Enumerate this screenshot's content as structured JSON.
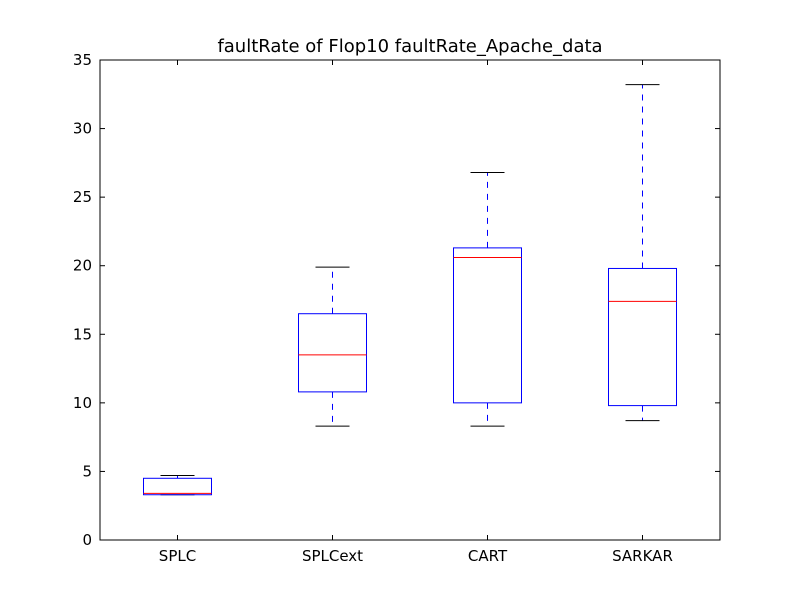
{
  "chart_data": {
    "type": "box",
    "title": "faultRate of Flop10 faultRate_Apache_data",
    "xlabel": "",
    "ylabel": "",
    "ylim": [
      0,
      35
    ],
    "yticks": [
      0,
      5,
      10,
      15,
      20,
      25,
      30,
      35
    ],
    "grid": false,
    "colors": {
      "box": "#0000ff",
      "median": "#ff0000",
      "cap": "#000000",
      "axes": "#000000"
    },
    "categories": [
      "SPLC",
      "SPLCext",
      "CART",
      "SARKAR"
    ],
    "boxes": [
      {
        "label": "SPLC",
        "whisker_low": 3.3,
        "q1": 3.3,
        "median": 3.4,
        "q3": 4.5,
        "whisker_high": 4.7
      },
      {
        "label": "SPLCext",
        "whisker_low": 8.3,
        "q1": 10.8,
        "median": 13.5,
        "q3": 16.5,
        "whisker_high": 19.9
      },
      {
        "label": "CART",
        "whisker_low": 8.3,
        "q1": 10.0,
        "median": 20.6,
        "q3": 21.3,
        "whisker_high": 26.8
      },
      {
        "label": "SARKAR",
        "whisker_low": 8.7,
        "q1": 9.8,
        "median": 17.4,
        "q3": 19.8,
        "whisker_high": 33.2
      }
    ]
  }
}
